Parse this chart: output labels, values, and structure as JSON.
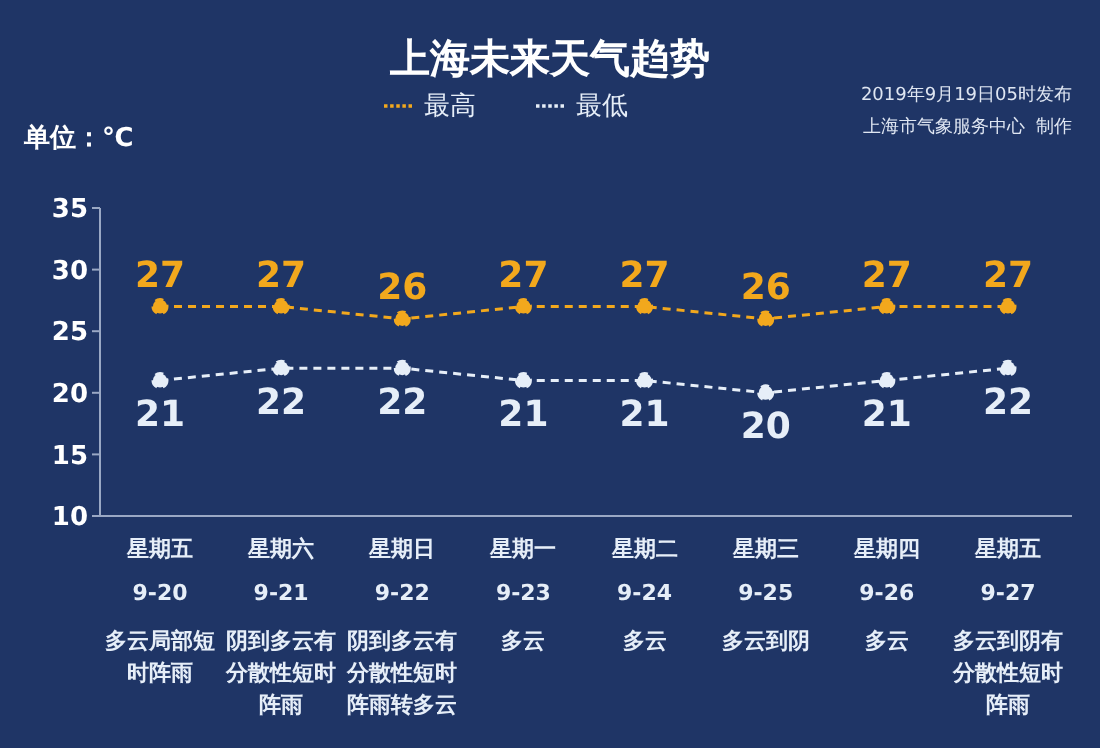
{
  "chart_data": {
    "type": "line",
    "title": "上海未来天气趋势",
    "ylabel": "单位：℃",
    "annotations": [
      "2019年9月19日05时发布",
      "上海市气象服务中心  制作"
    ],
    "categories": [
      "星期五\n9-20\n多云局部短时阵雨",
      "星期六\n9-21\n阴到多云有分散性短时阵雨",
      "星期日\n9-22\n阴到多云有分散性短时阵雨转多云",
      "星期一\n9-23\n多云",
      "星期二\n9-24\n多云",
      "星期三\n9-25\n多云到阴",
      "星期四\n9-26\n多云",
      "星期五\n9-27\n多云到阴有分散性短时阵雨"
    ],
    "series": [
      {
        "name": "最高",
        "color": "#f2a81d",
        "values": [
          27,
          27,
          26,
          27,
          27,
          26,
          27,
          27
        ]
      },
      {
        "name": "最低",
        "color": "#e6eef8",
        "values": [
          21,
          22,
          22,
          21,
          21,
          20,
          21,
          22
        ]
      }
    ],
    "ylim": [
      10,
      35
    ],
    "yticks": [
      10,
      15,
      20,
      25,
      30,
      35
    ],
    "grid": false,
    "legend": "top",
    "marker": "circle",
    "line_style": "dashed",
    "data_labels": true
  }
}
